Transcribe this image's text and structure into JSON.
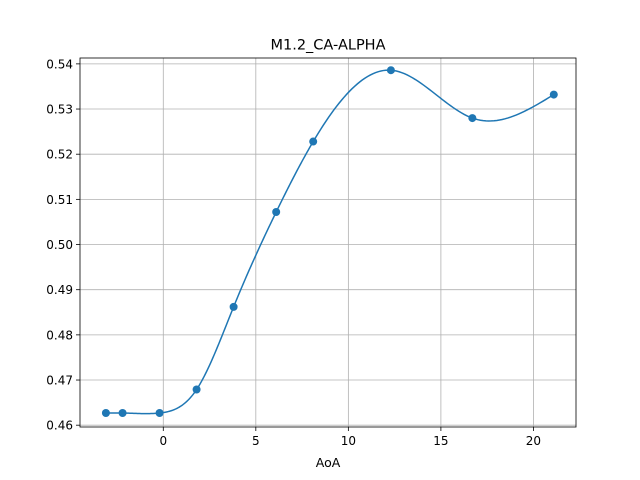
{
  "chart_data": {
    "type": "line",
    "title": "M1.2_CA-ALPHA",
    "xlabel": "AoA",
    "ylabel": "",
    "xlim": [
      -4.5,
      22.3
    ],
    "ylim": [
      0.4596,
      0.5413
    ],
    "xticks": [
      0,
      5,
      10,
      15,
      20
    ],
    "yticks": [
      0.46,
      0.47,
      0.48,
      0.49,
      0.5,
      0.51,
      0.52,
      0.53,
      0.54
    ],
    "xtick_labels": [
      "0",
      "5",
      "10",
      "15",
      "20"
    ],
    "ytick_labels": [
      "0.46",
      "0.47",
      "0.48",
      "0.49",
      "0.50",
      "0.51",
      "0.52",
      "0.53",
      "0.54"
    ],
    "grid": true,
    "series": [
      {
        "color": "#1f77b4",
        "marker": "circle",
        "smooth": true,
        "x": [
          -3.1,
          -2.2,
          -0.2,
          1.8,
          3.8,
          6.1,
          8.1,
          12.3,
          16.7,
          21.1
        ],
        "y": [
          0.4627,
          0.4627,
          0.4627,
          0.4679,
          0.4862,
          0.5072,
          0.5228,
          0.5386,
          0.528,
          0.5332
        ]
      }
    ]
  }
}
